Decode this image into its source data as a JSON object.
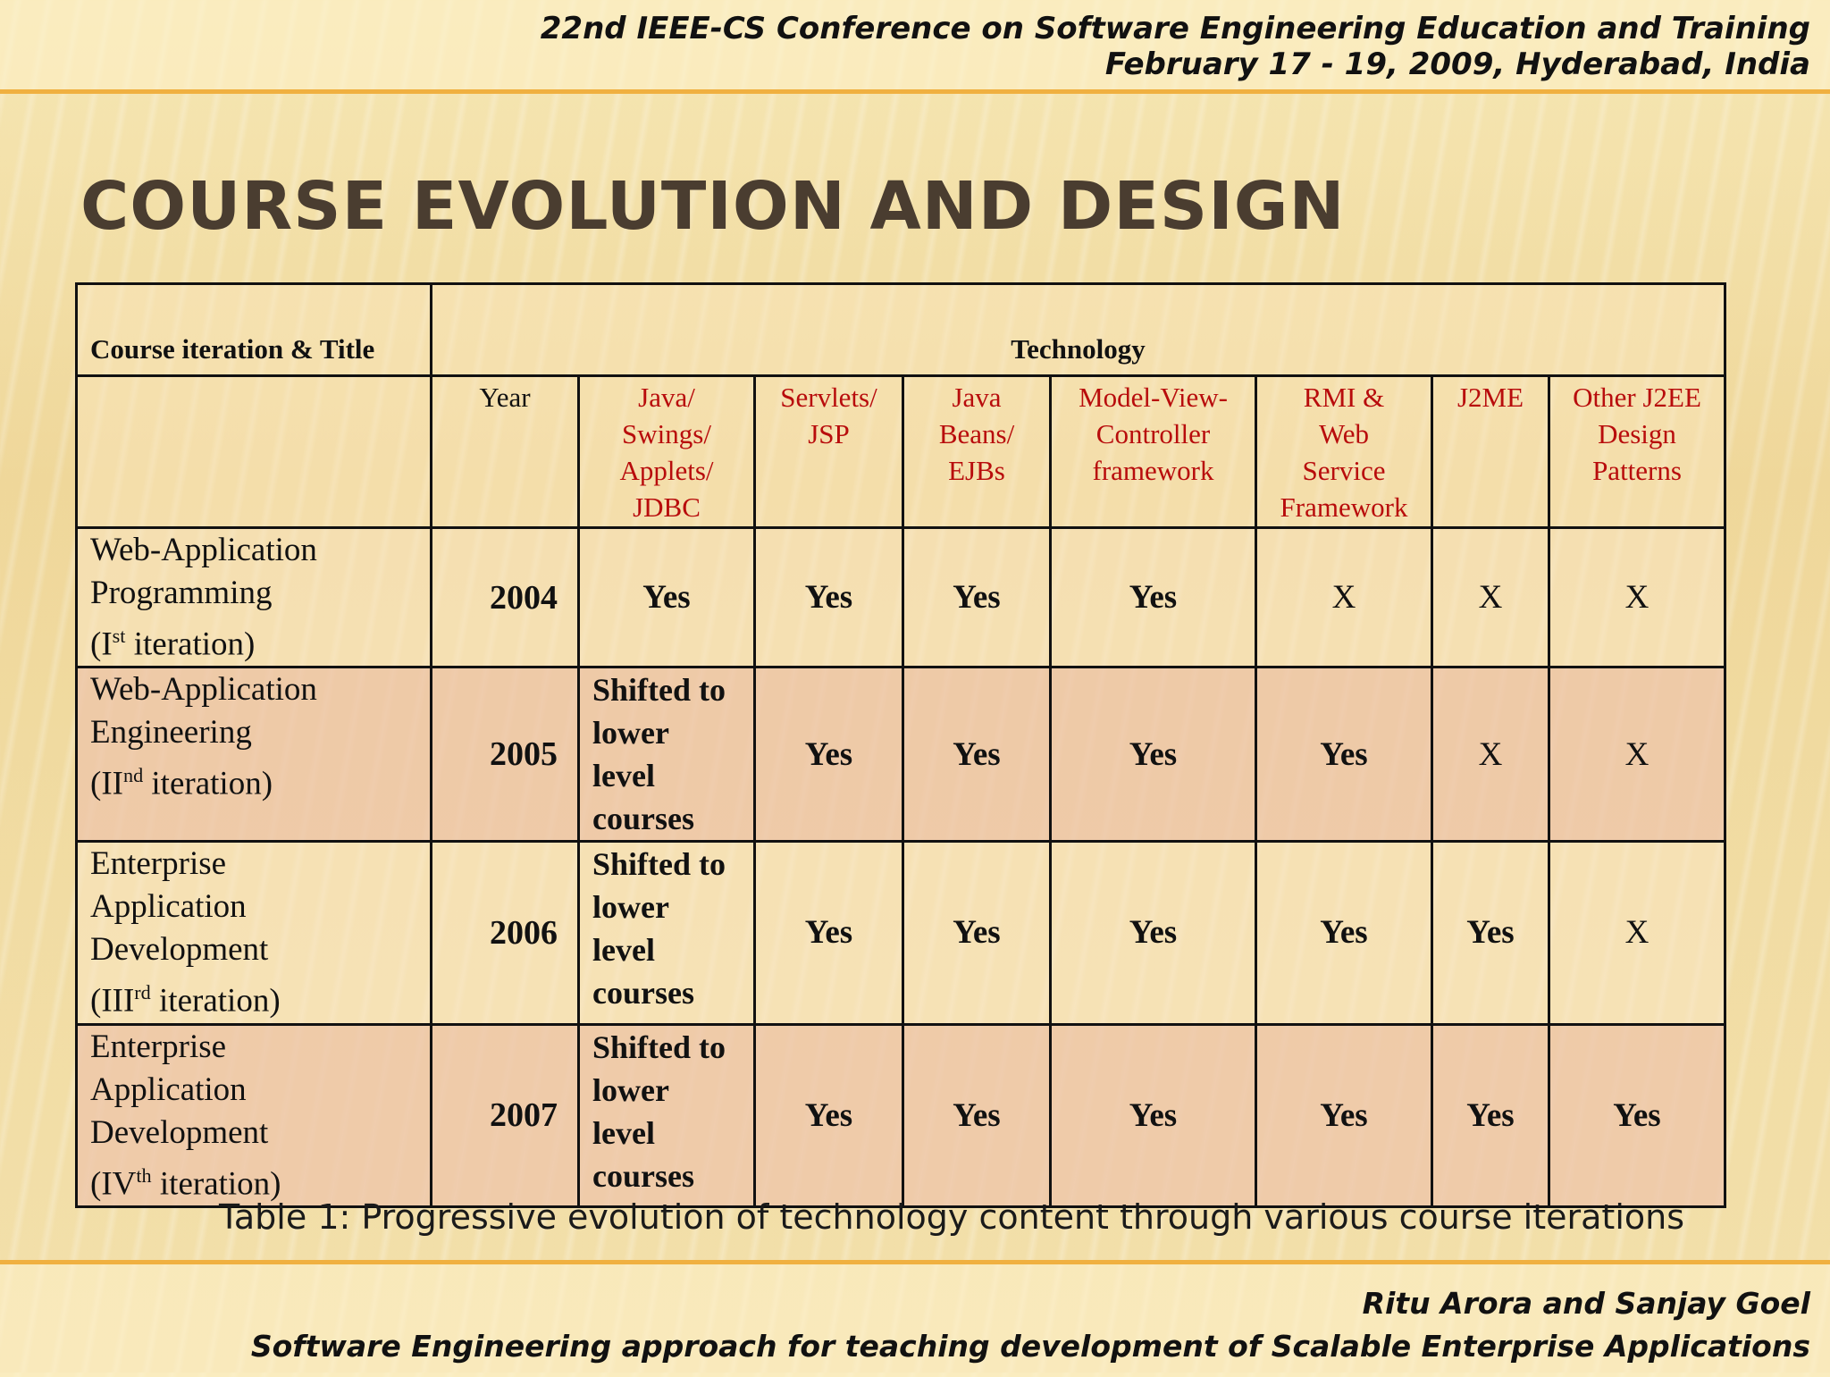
{
  "header": {
    "conference": "22nd IEEE-CS Conference on Software Engineering Education and Training",
    "dates": "February 17 - 19, 2009, Hyderabad, India"
  },
  "slide": {
    "title": "Course Evolution and Design"
  },
  "table": {
    "col_title": "Course iteration & Title",
    "col_technology": "Technology",
    "subheaders": {
      "year": "Year",
      "tech": [
        [
          "Java/",
          "Swings/",
          "Applets/",
          "JDBC"
        ],
        [
          "Servlets/",
          "JSP"
        ],
        [
          "Java",
          "Beans/",
          "EJBs"
        ],
        [
          "Model-View-",
          "Controller",
          "framework"
        ],
        [
          "RMI &",
          "Web",
          "Service",
          "Framework"
        ],
        [
          "J2ME"
        ],
        [
          "Other J2EE",
          "Design",
          "Patterns"
        ]
      ]
    },
    "rows": [
      {
        "title_lines": [
          "Web-Application",
          "Programming"
        ],
        "iter_prefix": "(I",
        "iter_sup": "st",
        "iter_suffix": " iteration)",
        "year": "2004",
        "values": [
          "Yes",
          "Yes",
          "Yes",
          "Yes",
          "X",
          "X",
          "X"
        ]
      },
      {
        "title_lines": [
          "Web-Application",
          "Engineering"
        ],
        "iter_prefix": "(II",
        "iter_sup": "nd",
        "iter_suffix": " iteration)",
        "year": "2005",
        "values": [
          [
            "Shifted to",
            "lower",
            "level",
            "courses"
          ],
          "Yes",
          "Yes",
          "Yes",
          "Yes",
          "X",
          "X"
        ]
      },
      {
        "title_lines": [
          "Enterprise",
          "Application",
          "Development"
        ],
        "iter_prefix": "(III",
        "iter_sup": "rd",
        "iter_suffix": " iteration)",
        "year": "2006",
        "values": [
          [
            "Shifted to",
            "lower",
            "level",
            "courses"
          ],
          "Yes",
          "Yes",
          "Yes",
          "Yes",
          "Yes",
          "X"
        ]
      },
      {
        "title_lines": [
          "Enterprise",
          "Application",
          "Development"
        ],
        "iter_prefix": "(IV",
        "iter_sup": "th",
        "iter_suffix": " iteration)",
        "year": "2007",
        "values": [
          [
            "Shifted to",
            "lower",
            "level",
            "courses"
          ],
          "Yes",
          "Yes",
          "Yes",
          "Yes",
          "Yes",
          "Yes"
        ]
      }
    ],
    "caption": "Table 1: Progressive evolution of technology content through various course iterations"
  },
  "footer": {
    "authors": "Ritu Arora and Sanjay Goel",
    "paper_title": "Software Engineering approach for teaching development of Scalable Enterprise Applications"
  }
}
